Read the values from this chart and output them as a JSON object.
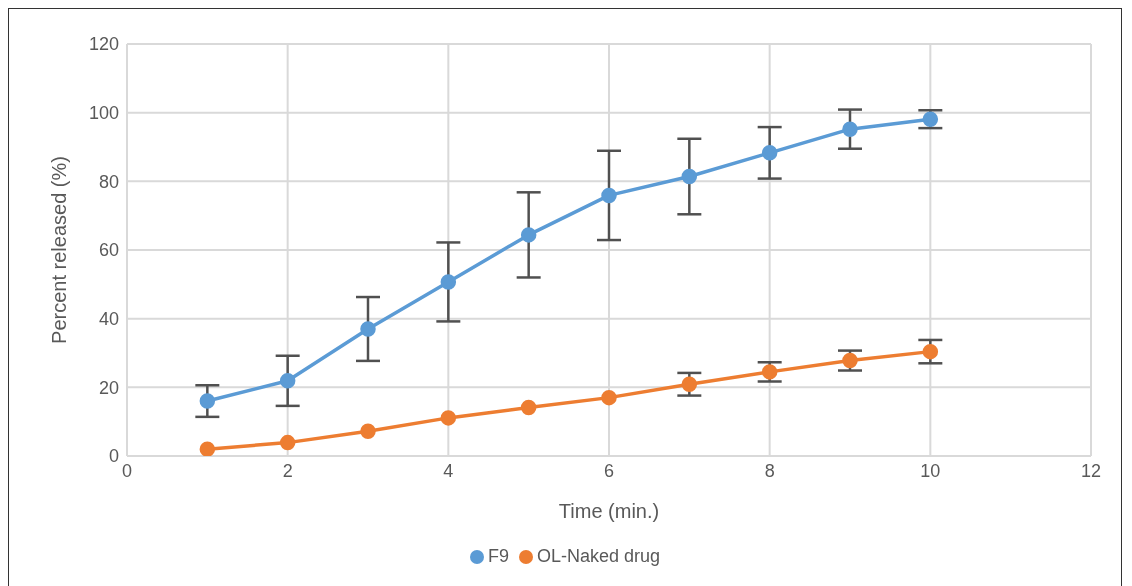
{
  "chart_data": {
    "type": "line",
    "xlabel": "Time (min.)",
    "ylabel": "Percent released (%)",
    "x": [
      1,
      2,
      3,
      4,
      5,
      6,
      7,
      8,
      9,
      10
    ],
    "series": [
      {
        "name": "F9",
        "color": "#5b9bd5",
        "values": [
          16.0,
          21.9,
          37.0,
          50.7,
          64.4,
          75.9,
          81.4,
          88.3,
          95.2,
          98.1
        ],
        "errors": [
          4.6,
          7.3,
          9.3,
          11.5,
          12.4,
          13.0,
          11.0,
          7.5,
          5.7,
          2.6
        ]
      },
      {
        "name": "OL-Naked drug",
        "color": "#ed7d31",
        "values": [
          2.0,
          3.9,
          7.2,
          11.1,
          14.1,
          17.0,
          20.9,
          24.5,
          27.8,
          30.4
        ],
        "errors": [
          null,
          null,
          null,
          null,
          null,
          null,
          3.3,
          2.8,
          2.9,
          3.4
        ]
      }
    ],
    "xlim": [
      0,
      12
    ],
    "xticks": [
      0,
      2,
      4,
      6,
      8,
      10,
      12
    ],
    "ylim": [
      0,
      120
    ],
    "yticks": [
      0,
      20,
      40,
      60,
      80,
      100,
      120
    ],
    "grid": true,
    "legend": "bottom",
    "marker": "circle",
    "line_style": "solid"
  }
}
